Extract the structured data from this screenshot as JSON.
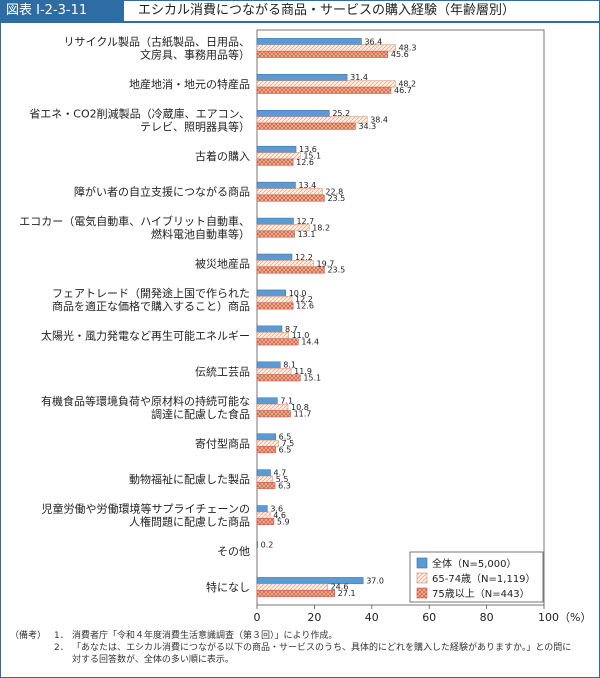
{
  "header": {
    "figure_id": "図表 I-2-3-11",
    "title": "エシカル消費につながる商品・サービスの購入経験（年齢層別）"
  },
  "chart_data": {
    "type": "bar",
    "orientation": "horizontal",
    "xlim": [
      0,
      100
    ],
    "xticks": [
      0,
      20,
      40,
      60,
      80,
      100
    ],
    "xtick_labels": [
      "0",
      "20",
      "40",
      "60",
      "80",
      "100（%）"
    ],
    "categories": [
      [
        "リサイクル製品（古紙製品、日用品、",
        "文房具、事務用品等）"
      ],
      [
        "地産地消・地元の特産品"
      ],
      [
        "省エネ・CO2削減製品（冷蔵庫、エアコン、",
        "テレビ、照明器具等）"
      ],
      [
        "古着の購入"
      ],
      [
        "障がい者の自立支援につながる商品"
      ],
      [
        "エコカー（電気自動車、ハイブリット自動車、",
        "燃料電池自動車等）"
      ],
      [
        "被災地産品"
      ],
      [
        "フェアトレード（開発途上国で作られた",
        "商品を適正な価格で購入すること）商品"
      ],
      [
        "太陽光・風力発電など再生可能エネルギー"
      ],
      [
        "伝統工芸品"
      ],
      [
        "有機食品等環境負荷や原材料の持続可能な",
        "調達に配慮した食品"
      ],
      [
        "寄付型商品"
      ],
      [
        "動物福祉に配慮した製品"
      ],
      [
        "児童労働や労働環境等サプライチェーンの",
        "人権問題に配慮した商品"
      ],
      [
        "その他"
      ],
      [
        "特になし"
      ]
    ],
    "series": [
      {
        "name": "全体（N=5,000）",
        "color": "#5b9bd5",
        "labels": [
          "36.4",
          "31.4",
          "25.2",
          "13.6",
          "13.4",
          "12.7",
          "12.2",
          "10.0",
          "8.7",
          "8.1",
          "7.1",
          "6.5",
          "4.7",
          "3.6",
          "0.2",
          "37.0"
        ]
      },
      {
        "name": "65-74歳（N=1,119）",
        "color": "#fbe5d6",
        "labels": [
          "48.3",
          "48.2",
          "38.4",
          "15.1",
          "22.8",
          "18.2",
          "19.7",
          "12.2",
          "11.0",
          "11.9",
          "10.8",
          "7.5",
          "5.5",
          "4.6",
          "",
          "24.6"
        ]
      },
      {
        "name": "75歳以上（N=443）",
        "color": "#f4b183",
        "labels": [
          "45.6",
          "46.7",
          "34.3",
          "12.6",
          "23.5",
          "13.1",
          "23.5",
          "12.6",
          "14.4",
          "15.1",
          "11.7",
          "6.5",
          "6.3",
          "5.9",
          "",
          "27.1"
        ]
      }
    ]
  },
  "notes": {
    "label": "（備考）",
    "items": [
      {
        "num": "1．",
        "lines": [
          "消費者庁「令和４年度消費生活意識調査（第３回）」により作成。"
        ]
      },
      {
        "num": "2．",
        "lines": [
          "「あなたは、エシカル消費につながる以下の商品・サービスのうち、具体的にどれを購入した経験がありますか。」との問に",
          "対する回答数が、全体の多い順に表示。"
        ]
      }
    ]
  }
}
